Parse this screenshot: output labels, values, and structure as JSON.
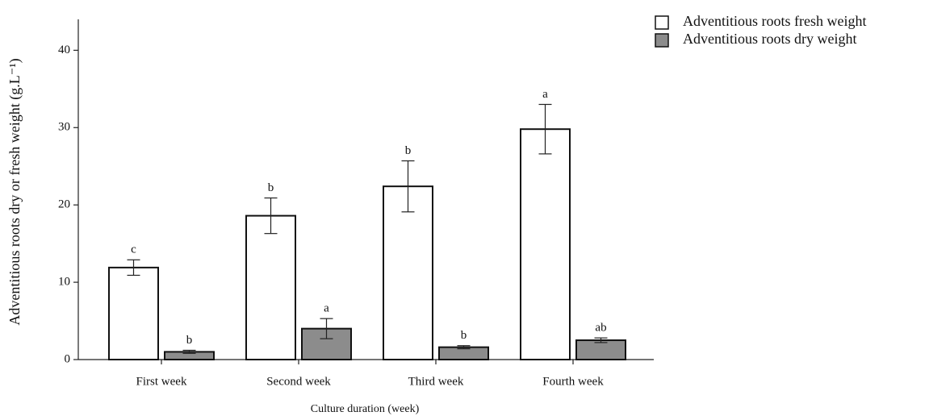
{
  "chart_data": {
    "type": "bar",
    "x_label": "Culture duration (week)",
    "y_label": "Adventitious roots dry or fresh weight (g.L⁻¹)",
    "categories": [
      "First week",
      "Second week",
      "Third week",
      "Fourth week"
    ],
    "series": [
      {
        "name": "Adventitious roots fresh weight",
        "color": "#ffffff",
        "values": [
          11.9,
          18.6,
          22.4,
          29.8
        ],
        "errors": [
          1.0,
          2.3,
          3.3,
          3.2
        ],
        "significance": [
          "c",
          "b",
          "b",
          "a"
        ]
      },
      {
        "name": "Adventitious roots dry weight",
        "color": "#8c8c8c",
        "values": [
          1.0,
          4.0,
          1.6,
          2.5
        ],
        "errors": [
          0.2,
          1.3,
          0.2,
          0.3
        ],
        "significance": [
          "b",
          "a",
          "b",
          "ab"
        ]
      }
    ],
    "ylim": [
      0,
      44
    ],
    "yticks": [
      0,
      10,
      20,
      30,
      40
    ],
    "grid": false,
    "legend": "top-right"
  }
}
